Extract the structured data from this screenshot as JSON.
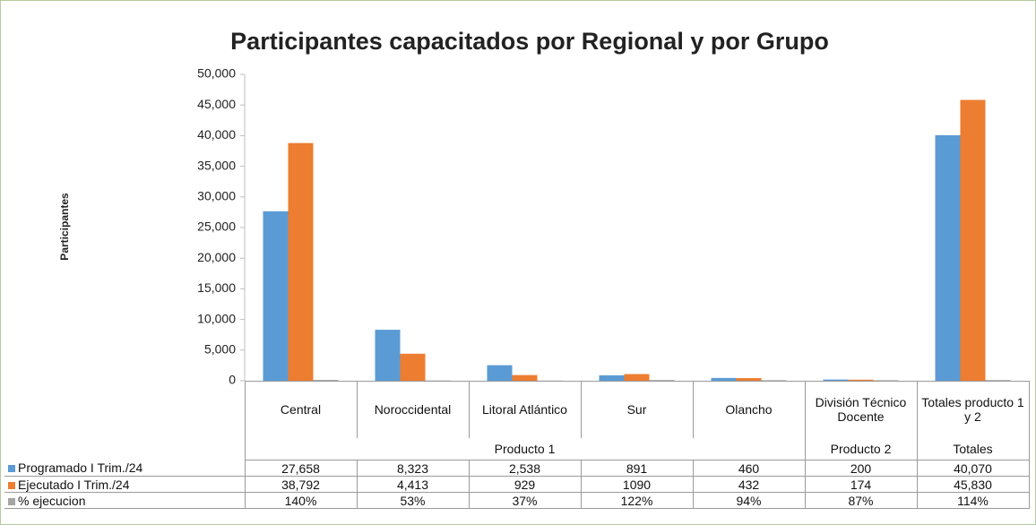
{
  "chart_data": {
    "type": "bar",
    "title": "Participantes capacitados por Regional y por Grupo",
    "ylabel": "Participantes",
    "categories": [
      "Central",
      "Noroccidental",
      "Litoral Atlántico",
      "Sur",
      "Olancho",
      "División Técnico Docente",
      "Totales producto 1 y 2"
    ],
    "groups": [
      {
        "name": "Producto 1",
        "size": 5
      },
      {
        "name": "Producto 2",
        "size": 1
      },
      {
        "name": "Totales",
        "size": 1
      }
    ],
    "series": [
      {
        "name": "Programado I Trim./24",
        "color": "#5b9bd5",
        "values": [
          27658,
          8323,
          2538,
          891,
          460,
          200,
          40070
        ],
        "value_labels": [
          "27,658",
          "8,323",
          "2,538",
          "891",
          "460",
          "200",
          "40,070"
        ]
      },
      {
        "name": "Ejecutado I Trim./24",
        "color": "#ed7d31",
        "values": [
          38792,
          4413,
          929,
          1090,
          432,
          174,
          45830
        ],
        "value_labels": [
          "38,792",
          "4,413",
          "929",
          "1090",
          "432",
          "174",
          "45,830"
        ]
      },
      {
        "name": "% ejecucion",
        "color": "#a5a5a5",
        "values": [
          140,
          53,
          37,
          122,
          94,
          87,
          114
        ],
        "value_labels": [
          "140%",
          "53%",
          "37%",
          "122%",
          "94%",
          "87%",
          "114%"
        ]
      }
    ],
    "ylim": [
      0,
      50000
    ],
    "yticks": [
      {
        "value": 0,
        "label": "0"
      },
      {
        "value": 5000,
        "label": "5,000"
      },
      {
        "value": 10000,
        "label": "10,000"
      },
      {
        "value": 15000,
        "label": "15,000"
      },
      {
        "value": 20000,
        "label": "20,000"
      },
      {
        "value": 25000,
        "label": "25,000"
      },
      {
        "value": 30000,
        "label": "30,000"
      },
      {
        "value": 35000,
        "label": "35,000"
      },
      {
        "value": 40000,
        "label": "40,000"
      },
      {
        "value": 45000,
        "label": "45,000"
      },
      {
        "value": 50000,
        "label": "50,000"
      }
    ],
    "grid": false
  }
}
